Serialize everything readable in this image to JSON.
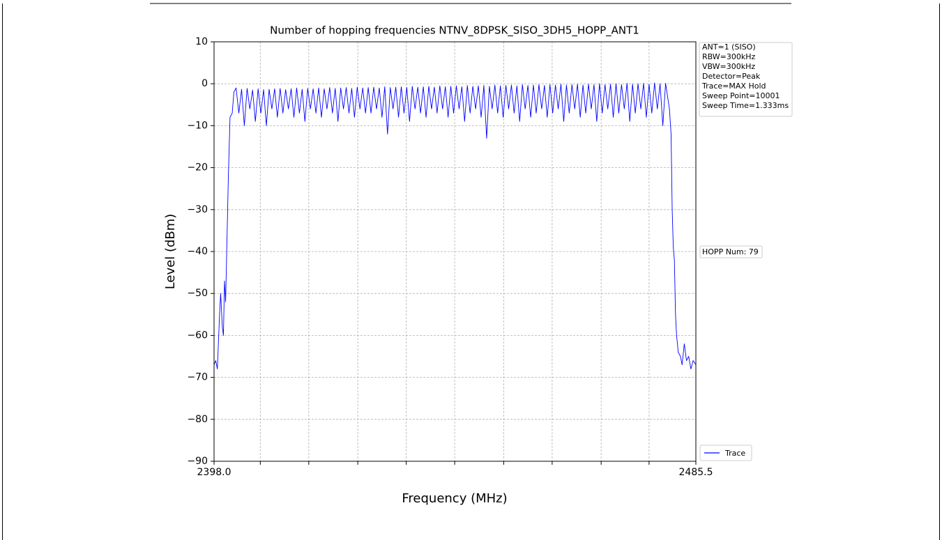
{
  "chart_data": {
    "type": "line",
    "title": "Number of hopping frequencies NTNV_8DPSK_SISO_3DH5_HOPP_ANT1",
    "x_label": "Frequency (MHz)",
    "y_label": "Level (dBm)",
    "xlim": [
      2398.0,
      2485.5
    ],
    "ylim": [
      -90,
      10
    ],
    "xticks": [
      {
        "value": 2398.0,
        "label": "2398.0"
      },
      {
        "value": 2406.4,
        "label": null
      },
      {
        "value": 2415.2,
        "label": null
      },
      {
        "value": 2424.1,
        "label": null
      },
      {
        "value": 2432.9,
        "label": null
      },
      {
        "value": 2441.7,
        "label": null
      },
      {
        "value": 2450.6,
        "label": null
      },
      {
        "value": 2459.4,
        "label": null
      },
      {
        "value": 2468.3,
        "label": null
      },
      {
        "value": 2477.0,
        "label": null
      },
      {
        "value": 2485.5,
        "label": "2485.5"
      }
    ],
    "yticks": [
      {
        "value": -90,
        "label": "−90"
      },
      {
        "value": -80,
        "label": "−80"
      },
      {
        "value": -70,
        "label": "−70"
      },
      {
        "value": -60,
        "label": "−60"
      },
      {
        "value": -50,
        "label": "−50"
      },
      {
        "value": -40,
        "label": "−40"
      },
      {
        "value": -30,
        "label": "−30"
      },
      {
        "value": -20,
        "label": "−20"
      },
      {
        "value": -10,
        "label": "−10"
      },
      0,
      10
    ],
    "grid": true,
    "annotations": [
      "ANT=1 (SISO)",
      "RBW=300kHz",
      "VBW=300kHz",
      "Detector=Peak",
      "Trace=MAX Hold",
      "Sweep Point=10001",
      "Sweep Time=1.333ms"
    ],
    "hopp_label": "HOPP Num: 79",
    "x": [
      2398.0,
      2398.3,
      2398.6,
      2399.0,
      2399.2,
      2399.5,
      2399.7,
      2399.9,
      2400.1,
      2400.3,
      2400.6,
      2400.9,
      2401.3,
      2401.6,
      2402,
      2402.5,
      2403,
      2403.5,
      2404,
      2404.5,
      2405,
      2405.5,
      2406,
      2406.5,
      2407,
      2407.5,
      2408,
      2408.5,
      2409,
      2409.5,
      2410,
      2410.5,
      2411,
      2411.5,
      2412,
      2412.5,
      2413,
      2413.5,
      2414,
      2414.5,
      2415,
      2415.5,
      2416,
      2416.5,
      2417,
      2417.5,
      2418,
      2418.5,
      2419,
      2419.5,
      2420,
      2420.5,
      2421,
      2421.5,
      2422,
      2422.5,
      2423,
      2423.5,
      2424,
      2424.5,
      2425,
      2425.5,
      2426,
      2426.5,
      2427,
      2427.5,
      2428,
      2428.5,
      2429,
      2429.5,
      2430,
      2430.5,
      2431,
      2431.5,
      2432,
      2432.5,
      2433,
      2433.5,
      2434,
      2434.5,
      2435,
      2435.5,
      2436,
      2436.5,
      2437,
      2437.5,
      2438,
      2438.5,
      2439,
      2439.5,
      2440,
      2440.5,
      2441,
      2441.5,
      2442,
      2442.5,
      2443,
      2443.5,
      2444,
      2444.5,
      2445,
      2445.5,
      2446,
      2446.5,
      2447,
      2447.5,
      2448,
      2448.5,
      2449,
      2449.5,
      2450,
      2450.5,
      2451,
      2451.5,
      2452,
      2452.5,
      2453,
      2453.5,
      2454,
      2454.5,
      2455,
      2455.5,
      2456,
      2456.5,
      2457,
      2457.5,
      2458,
      2458.5,
      2459,
      2459.5,
      2460,
      2460.5,
      2461,
      2461.5,
      2462,
      2462.5,
      2463,
      2463.5,
      2464,
      2464.5,
      2465,
      2465.5,
      2466,
      2466.5,
      2467,
      2467.5,
      2468,
      2468.5,
      2469,
      2469.5,
      2470,
      2470.5,
      2471,
      2471.5,
      2472,
      2472.5,
      2473,
      2473.5,
      2474,
      2474.5,
      2475,
      2475.5,
      2476,
      2476.5,
      2477,
      2477.5,
      2478,
      2478.5,
      2479,
      2479.5,
      2480,
      2480.7,
      2481.0,
      2481.2,
      2481.4,
      2481.6,
      2481.8,
      2482.0,
      2482.3,
      2482.7,
      2483.0,
      2483.4,
      2483.8,
      2484.2,
      2484.6,
      2485.0,
      2485.5
    ],
    "series": [
      {
        "name": "Trace",
        "color": "#0000ff",
        "values": [
          -67,
          -66,
          -68,
          -55,
          -50,
          -58,
          -60,
          -47,
          -52,
          -40,
          -22,
          -8,
          -7,
          -2,
          -1.0,
          -7,
          -1.3,
          -10,
          -1.1,
          -6,
          -1.5,
          -9,
          -1.2,
          -7,
          -1.4,
          -10,
          -1.3,
          -6,
          -1.2,
          -8,
          -1.1,
          -7,
          -1.4,
          -6,
          -1.2,
          -8,
          -1.0,
          -7,
          -1.3,
          -9,
          -1.1,
          -6,
          -1.2,
          -7,
          -1.0,
          -8,
          -1.2,
          -6,
          -0.9,
          -7,
          -1.1,
          -9,
          -1.0,
          -6,
          -0.9,
          -7,
          -1.1,
          -8,
          -0.8,
          -6,
          -1.0,
          -7,
          -0.9,
          -7,
          -0.8,
          -6,
          -1.0,
          -8,
          -0.7,
          -12,
          -0.9,
          -6,
          -0.8,
          -8,
          -0.7,
          -7,
          -0.9,
          -9,
          -0.6,
          -6,
          -0.8,
          -7,
          -0.7,
          -8,
          -0.6,
          -6,
          -0.8,
          -7,
          -0.5,
          -6,
          -0.7,
          -8,
          -0.6,
          -7,
          -0.5,
          -6,
          -0.7,
          -9,
          -0.4,
          -7,
          -0.6,
          -6,
          -0.5,
          -8,
          -0.4,
          -13,
          -0.6,
          -6,
          -0.3,
          -7,
          -0.5,
          -8,
          -0.4,
          -6,
          -0.3,
          -7,
          -0.5,
          -9,
          -0.2,
          -6,
          -0.4,
          -8,
          -0.3,
          -7,
          -0.2,
          -6,
          -0.4,
          -8,
          -0.2,
          -7,
          -0.3,
          -6,
          -0.1,
          -9,
          -0.3,
          -7,
          -0.2,
          -6,
          -0.1,
          -8,
          -0.3,
          -7,
          -0.1,
          -6,
          -0.2,
          -9,
          0.0,
          -7,
          -0.2,
          -6,
          -0.1,
          -8,
          0.0,
          -7,
          -0.2,
          -6,
          0.1,
          -9,
          -0.1,
          -7,
          0.0,
          -6,
          0.1,
          -8,
          -0.1,
          -7,
          0.2,
          -6,
          0.0,
          -10,
          0.1,
          -6,
          -12,
          -30,
          -39,
          -42,
          -55,
          -60,
          -64,
          -65,
          -67,
          -62,
          -66,
          -65,
          -68,
          -66,
          -67
        ]
      }
    ]
  }
}
